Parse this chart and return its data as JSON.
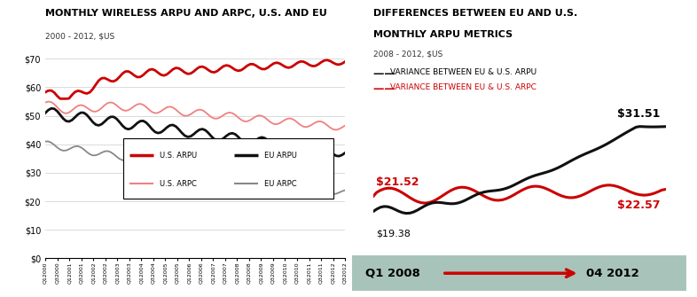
{
  "left_title": "MONTHLY WIRELESS ARPU AND ARPC, U.S. AND EU",
  "left_subtitle": "2000 - 2012, $US",
  "right_title_line1": "DIFFERENCES BETWEEN EU AND U.S.",
  "right_title_line2": "MONTHLY ARPU METRICS",
  "right_subtitle": "2008 - 2012, $US",
  "left_ylim": [
    0,
    75
  ],
  "left_yticks": [
    0,
    10,
    20,
    30,
    40,
    50,
    60,
    70
  ],
  "left_ytick_labels": [
    "$0",
    "$10",
    "$20",
    "$30",
    "$40",
    "$50",
    "$60",
    "$70"
  ],
  "us_arpu_color": "#cc0000",
  "eu_arpu_color": "#111111",
  "us_arpc_color": "#f08080",
  "eu_arpc_color": "#888888",
  "right_arpu_color": "#111111",
  "right_arpc_color": "#cc0000",
  "timeline_bg": "#a8c4ba",
  "legend_items": [
    {
      "label": "U.S. ARPU",
      "color": "#cc0000",
      "lw": 2.5
    },
    {
      "label": "EU ARPU",
      "color": "#111111",
      "lw": 2.5
    },
    {
      "label": "U.S. ARPC",
      "color": "#f08080",
      "lw": 1.5
    },
    {
      "label": "EU ARPC",
      "color": "#888888",
      "lw": 1.5
    }
  ],
  "right_legend_arpu_label": "VARIANCE BETWEEN EU & U.S. ARPU",
  "right_legend_arpc_label": "VARIANCE BETWEEN EU & U.S. ARPC",
  "start_label": "Q1 2008",
  "end_label": "04 2012",
  "arpu_start_val": "$19.38",
  "arpc_start_val": "$21.52",
  "arpu_end_val": "$31.51",
  "arpc_end_val": "$22.57"
}
